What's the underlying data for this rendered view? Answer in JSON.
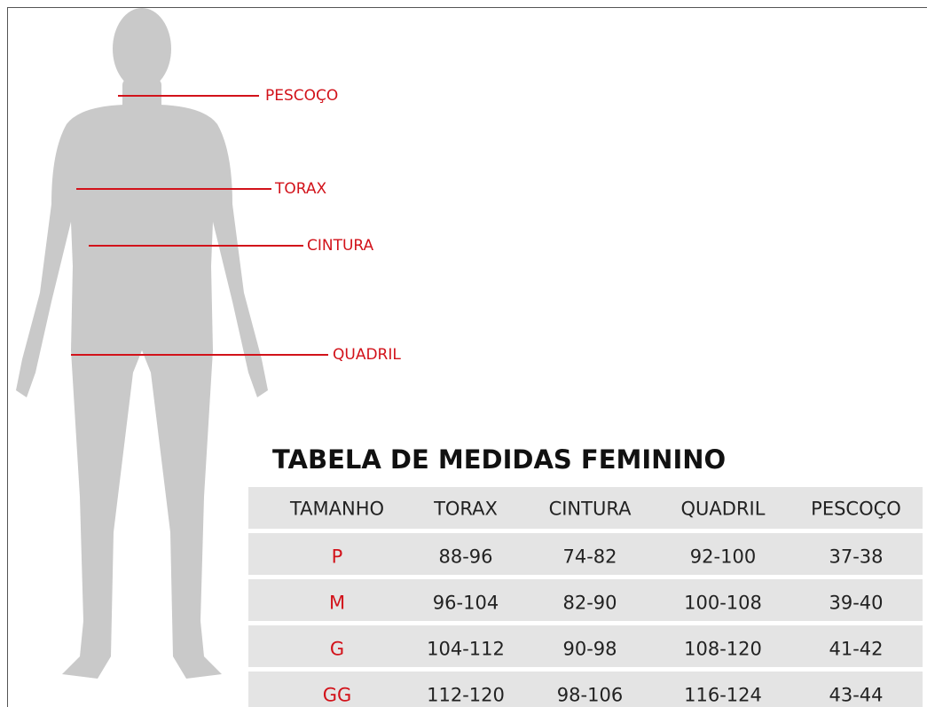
{
  "labels": [
    "PESCOÇO",
    "TORAX",
    "CINTURA",
    "QUADRIL"
  ],
  "table": {
    "title": "TABELA DE MEDIDAS FEMININO",
    "header": [
      "TAMANHO",
      "TORAX",
      "CINTURA",
      "QUADRIL",
      "PESCOÇO"
    ],
    "rows": [
      [
        "P",
        "88-96",
        "74-82",
        "92-100",
        "37-38"
      ],
      [
        "M",
        "96-104",
        "82-90",
        "100-108",
        "39-40"
      ],
      [
        "G",
        "104-112",
        "90-98",
        "108-120",
        "41-42"
      ],
      [
        "GG",
        "112-120",
        "98-106",
        "116-124",
        "43-44"
      ]
    ]
  }
}
